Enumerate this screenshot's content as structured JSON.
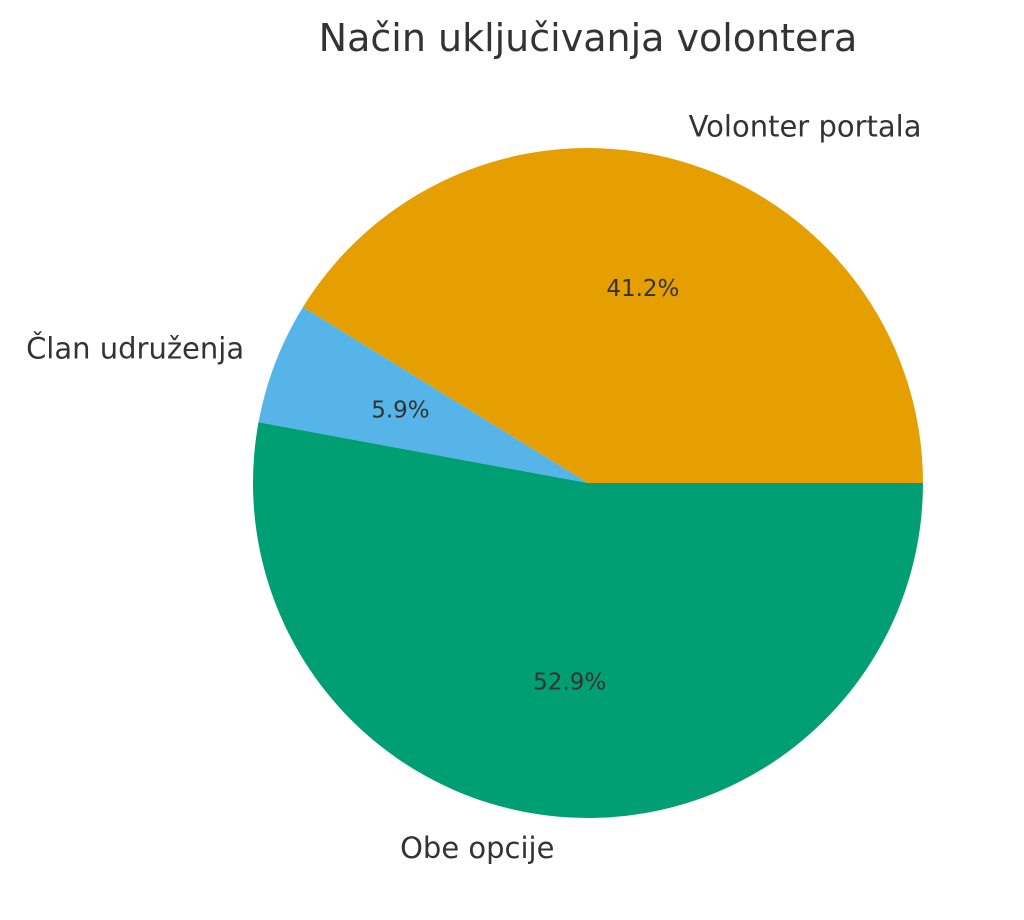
{
  "chart_data": {
    "type": "pie",
    "title": "Način uključivanja volontera",
    "start_angle_deg": 0,
    "direction": "counterclockwise",
    "slices": [
      {
        "label": "Volonter portala",
        "value": 41.2,
        "percent_label": "41.2%",
        "color": "#E69F00"
      },
      {
        "label": "Član udruženja",
        "value": 5.9,
        "percent_label": "5.9%",
        "color": "#56B4E9"
      },
      {
        "label": "Obe opcije",
        "value": 52.9,
        "percent_label": "52.9%",
        "color": "#009E73"
      }
    ]
  }
}
